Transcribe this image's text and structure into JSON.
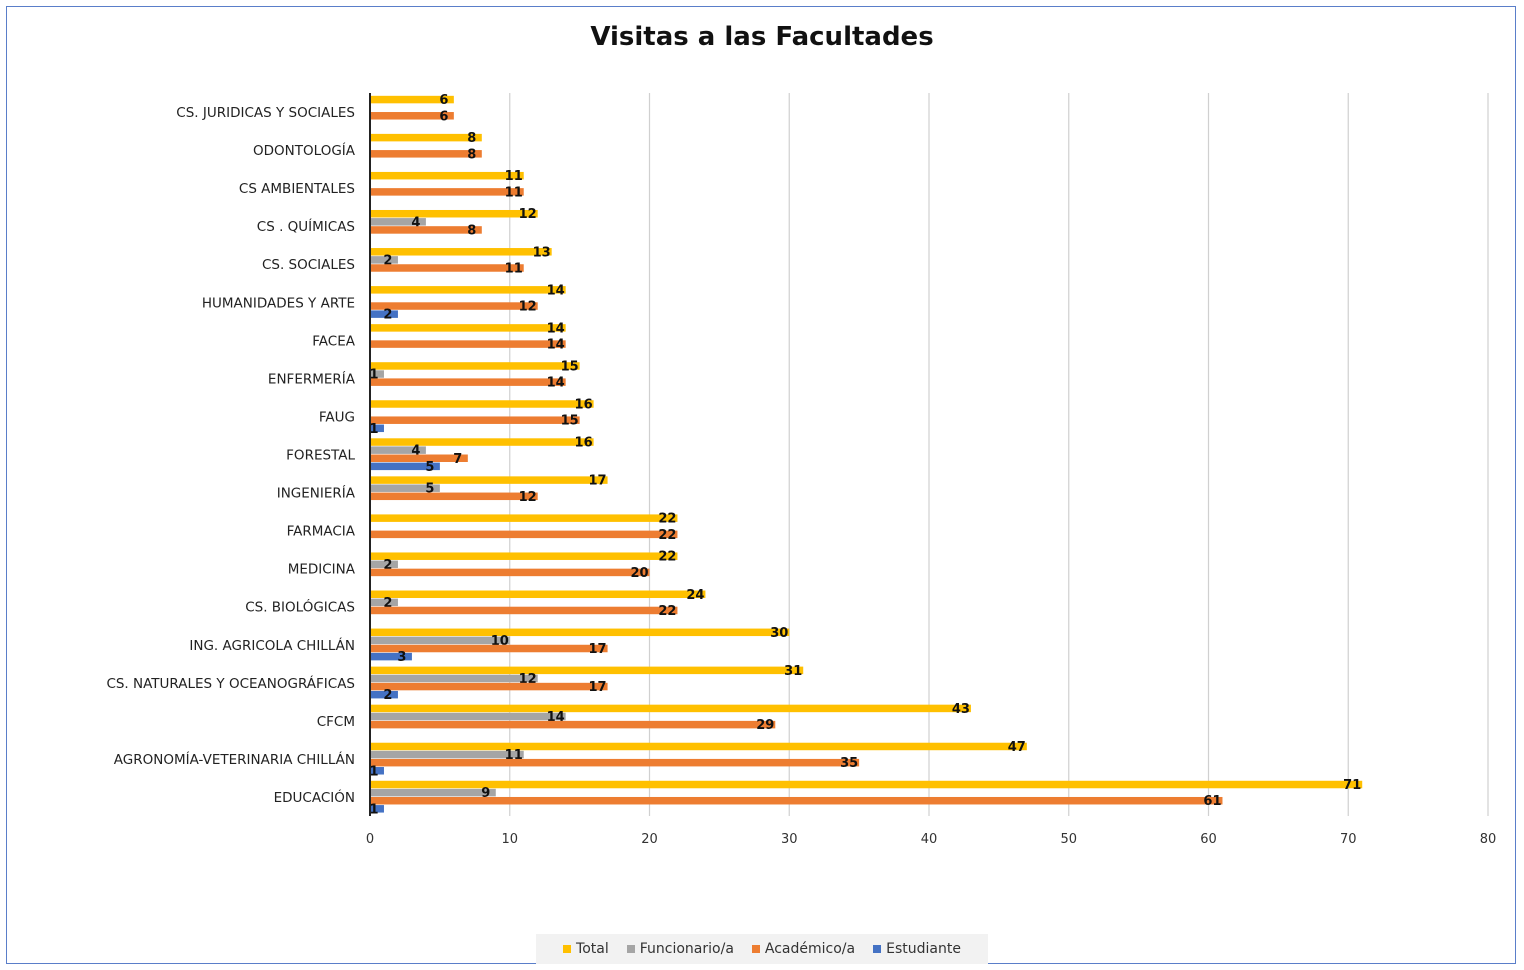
{
  "chart_data": {
    "type": "bar",
    "orientation": "horizontal",
    "title": "Visitas a las Facultades",
    "xlabel": "",
    "ylabel": "",
    "xlim": [
      0,
      80
    ],
    "xticks": [
      0,
      10,
      20,
      30,
      40,
      50,
      60,
      70,
      80
    ],
    "grid": true,
    "legend_position": "bottom",
    "categories": [
      "CS. JURIDICAS Y SOCIALES",
      "ODONTOLOGÍA",
      "CS AMBIENTALES",
      "CS . QUÍMICAS",
      "CS. SOCIALES",
      "HUMANIDADES Y ARTE",
      "FACEA",
      "ENFERMERÍA",
      "FAUG",
      "FORESTAL",
      "INGENIERÍA",
      "FARMACIA",
      "MEDICINA",
      "CS. BIOLÓGICAS",
      "ING. AGRICOLA CHILLÁN",
      "CS. NATURALES Y OCEANOGRÁFICAS",
      "CFCM",
      "AGRONOMÍA-VETERINARIA CHILLÁN",
      "EDUCACIÓN"
    ],
    "series": [
      {
        "name": "Total",
        "color": "#ffc000",
        "values": [
          6,
          8,
          11,
          12,
          13,
          14,
          14,
          15,
          16,
          16,
          17,
          22,
          22,
          24,
          30,
          31,
          43,
          47,
          71
        ]
      },
      {
        "name": "Funcionario/a",
        "color": "#a5a5a5",
        "values": [
          null,
          null,
          null,
          4,
          2,
          null,
          null,
          1,
          null,
          4,
          5,
          null,
          2,
          2,
          10,
          12,
          14,
          11,
          9
        ]
      },
      {
        "name": "Académico/a",
        "color": "#ed7d31",
        "values": [
          6,
          8,
          11,
          8,
          11,
          12,
          14,
          14,
          15,
          7,
          12,
          22,
          20,
          22,
          17,
          17,
          29,
          35,
          61
        ]
      },
      {
        "name": "Estudiante",
        "color": "#4472c4",
        "values": [
          null,
          null,
          null,
          null,
          null,
          2,
          null,
          null,
          1,
          5,
          null,
          null,
          null,
          null,
          3,
          2,
          null,
          1,
          1
        ]
      }
    ]
  }
}
